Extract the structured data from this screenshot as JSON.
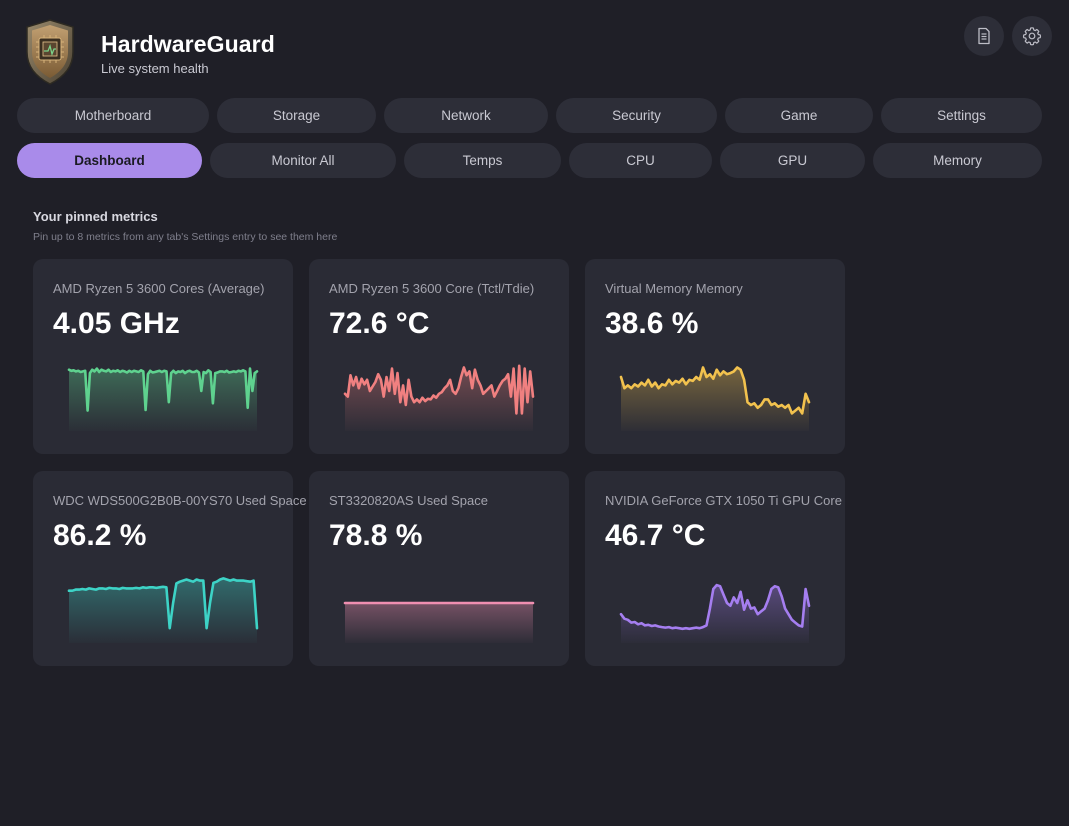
{
  "app": {
    "title": "HardwareGuard",
    "subtitle": "Live system health"
  },
  "header_actions": [
    {
      "icon": "document-icon"
    },
    {
      "icon": "gear-icon"
    }
  ],
  "nav_row1": [
    {
      "label": "Motherboard"
    },
    {
      "label": "Storage"
    },
    {
      "label": "Network"
    },
    {
      "label": "Security"
    },
    {
      "label": "Game"
    },
    {
      "label": "Settings"
    }
  ],
  "nav_row2": [
    {
      "label": "Dashboard",
      "active": true
    },
    {
      "label": "Monitor All"
    },
    {
      "label": "Temps"
    },
    {
      "label": "CPU"
    },
    {
      "label": "GPU"
    },
    {
      "label": "Memory"
    }
  ],
  "pinned": {
    "title": "Your pinned metrics",
    "subtitle": "Pin up to 8 metrics from any tab's Settings entry to see them here"
  },
  "colors": {
    "accent": "#a98bea",
    "background": "#1f1f27",
    "card": "#2a2b35"
  },
  "cards": [
    {
      "label": "AMD Ryzen 5 3600 Cores (Average)",
      "value": "4.05 GHz",
      "color": "#5fd28f",
      "series": [
        0.88,
        0.86,
        0.87,
        0.85,
        0.86,
        0.84,
        0.85,
        0.86,
        0.15,
        0.82,
        0.88,
        0.85,
        0.9,
        0.84,
        0.88,
        0.86,
        0.85,
        0.88,
        0.84,
        0.86,
        0.85,
        0.87,
        0.84,
        0.86,
        0.85,
        0.83,
        0.86,
        0.84,
        0.86,
        0.85,
        0.84,
        0.87,
        0.85,
        0.16,
        0.8,
        0.86,
        0.83,
        0.84,
        0.85,
        0.86,
        0.84,
        0.86,
        0.85,
        0.3,
        0.82,
        0.86,
        0.82,
        0.85,
        0.84,
        0.86,
        0.82,
        0.85,
        0.86,
        0.84,
        0.84,
        0.86,
        0.83,
        0.5,
        0.84,
        0.82,
        0.87,
        0.84,
        0.28,
        0.82,
        0.83,
        0.85,
        0.85,
        0.84,
        0.86,
        0.83,
        0.84,
        0.85,
        0.84,
        0.86,
        0.85,
        0.87,
        0.85,
        0.2,
        0.9,
        0.5,
        0.82,
        0.85
      ]
    },
    {
      "label": "AMD Ryzen 5 3600 Core (Tctl/Tdie)",
      "value": "72.6 °C",
      "color": "#f08080",
      "series": [
        0.45,
        0.4,
        0.78,
        0.6,
        0.75,
        0.55,
        0.72,
        0.62,
        0.7,
        0.5,
        0.58,
        0.66,
        0.8,
        0.7,
        0.4,
        0.75,
        0.5,
        0.9,
        0.45,
        0.82,
        0.3,
        0.6,
        0.25,
        0.7,
        0.4,
        0.3,
        0.35,
        0.3,
        0.38,
        0.32,
        0.36,
        0.35,
        0.42,
        0.38,
        0.45,
        0.48,
        0.55,
        0.6,
        0.7,
        0.5,
        0.45,
        0.55,
        0.75,
        0.92,
        0.78,
        0.85,
        0.55,
        0.88,
        0.7,
        0.6,
        0.45,
        0.5,
        0.55,
        0.6,
        0.4,
        0.5,
        0.6,
        0.68,
        0.72,
        0.8,
        0.4,
        0.9,
        0.1,
        0.95,
        0.1,
        0.9,
        0.3,
        0.85,
        0.4
      ]
    },
    {
      "label": "Virtual Memory Memory",
      "value": "38.6 %",
      "color": "#f2c24e",
      "series": [
        0.75,
        0.55,
        0.6,
        0.55,
        0.62,
        0.58,
        0.65,
        0.6,
        0.7,
        0.58,
        0.65,
        0.55,
        0.62,
        0.6,
        0.7,
        0.62,
        0.68,
        0.65,
        0.72,
        0.62,
        0.7,
        0.68,
        0.75,
        0.7,
        0.92,
        0.75,
        0.8,
        0.72,
        0.88,
        0.78,
        0.85,
        0.8,
        0.82,
        0.85,
        0.92,
        0.88,
        0.7,
        0.3,
        0.25,
        0.28,
        0.2,
        0.25,
        0.35,
        0.35,
        0.25,
        0.28,
        0.22,
        0.25,
        0.2,
        0.25,
        0.1,
        0.15,
        0.2,
        0.1,
        0.45,
        0.3
      ]
    },
    {
      "label": "WDC  WDS500G2B0B-00YS70  Used Space",
      "value": "86.2 %",
      "color": "#3dd3c6",
      "series": [
        0.72,
        0.72,
        0.74,
        0.74,
        0.75,
        0.74,
        0.76,
        0.75,
        0.74,
        0.76,
        0.76,
        0.75,
        0.77,
        0.76,
        0.76,
        0.75,
        0.77,
        0.76,
        0.76,
        0.76,
        0.77,
        0.76,
        0.78,
        0.77,
        0.78,
        0.78,
        0.77,
        0.78,
        0.79,
        0.78,
        0.05,
        0.5,
        0.85,
        0.88,
        0.9,
        0.92,
        0.9,
        0.88,
        0.92,
        0.9,
        0.9,
        0.05,
        0.5,
        0.86,
        0.88,
        0.92,
        0.94,
        0.92,
        0.9,
        0.92,
        0.9,
        0.9,
        0.9,
        0.89,
        0.88,
        0.9,
        0.05
      ]
    },
    {
      "label": "ST3320820AS  Used Space",
      "value": "78.8 %",
      "color": "#f08fb1",
      "series": [
        0.5,
        0.5,
        0.5,
        0.5,
        0.5,
        0.5,
        0.5,
        0.5,
        0.5,
        0.5,
        0.5,
        0.5,
        0.5,
        0.5,
        0.5,
        0.5,
        0.5,
        0.5,
        0.5,
        0.5
      ]
    },
    {
      "label": "NVIDIA GeForce GTX 1050 Ti GPU Core",
      "value": "46.7 °C",
      "color": "#a57ef0",
      "series": [
        0.3,
        0.22,
        0.2,
        0.15,
        0.16,
        0.12,
        0.14,
        0.1,
        0.11,
        0.09,
        0.1,
        0.08,
        0.07,
        0.06,
        0.07,
        0.05,
        0.06,
        0.05,
        0.04,
        0.05,
        0.04,
        0.05,
        0.06,
        0.05,
        0.07,
        0.1,
        0.4,
        0.75,
        0.82,
        0.8,
        0.65,
        0.5,
        0.45,
        0.6,
        0.5,
        0.7,
        0.38,
        0.55,
        0.4,
        0.42,
        0.3,
        0.35,
        0.4,
        0.55,
        0.75,
        0.8,
        0.78,
        0.62,
        0.4,
        0.3,
        0.2,
        0.15,
        0.1,
        0.08,
        0.75,
        0.45
      ]
    }
  ]
}
